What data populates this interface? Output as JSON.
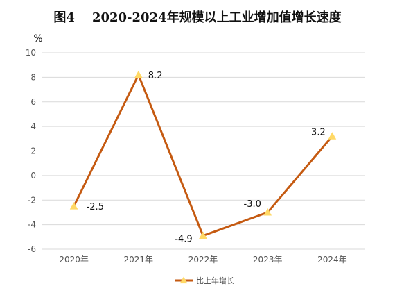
{
  "chart_data": {
    "type": "line",
    "title": "图4    2020-2024年规模以上工业增加值增长速度",
    "ylabel": "%",
    "xlabel": "",
    "categories": [
      "2020年",
      "2021年",
      "2022年",
      "2023年",
      "2024年"
    ],
    "series": [
      {
        "name": "比上年增长",
        "values": [
          -2.5,
          8.2,
          -4.9,
          -3.0,
          3.2
        ],
        "data_labels": [
          "-2.5",
          "8.2",
          "-4.9",
          "-3.0",
          "3.2"
        ],
        "line_color": "#c55a11",
        "marker_color": "#ffd966",
        "marker": "triangle"
      }
    ],
    "ylim": [
      -6,
      10
    ],
    "yticks": [
      -6,
      -4,
      -2,
      0,
      2,
      4,
      6,
      8,
      10
    ],
    "grid": true,
    "gridline_color": "#d9d9d9",
    "legend_position": "bottom"
  }
}
